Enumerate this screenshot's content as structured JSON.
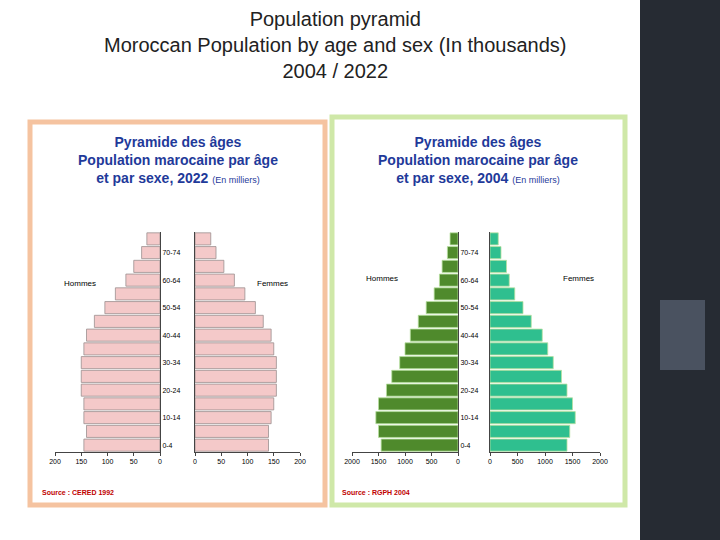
{
  "title": "Population pyramid\nMoroccan Population by age and sex (In thousands)\n2004 / 2022",
  "chart_data": [
    {
      "type": "bar",
      "orientation": "horizontal",
      "title": "Pyramide des âges\nPopulation marocaine par âge\net par sexe, 2022",
      "subtitle": "(En milliers)",
      "annotations": [
        "Source : CERED 1992"
      ],
      "categories": [
        "0-4",
        null,
        "10-14",
        null,
        "20-24",
        null,
        "30-34",
        null,
        "40-44",
        null,
        "50-54",
        null,
        "60-64",
        null,
        "70-74",
        null
      ],
      "series": [
        {
          "name": "Hommes",
          "color": "#f4c9c9",
          "values": [
            145,
            140,
            145,
            145,
            150,
            150,
            150,
            145,
            140,
            125,
            105,
            85,
            65,
            50,
            35,
            25
          ]
        },
        {
          "name": "Femmes",
          "color": "#f4c9c9",
          "values": [
            140,
            140,
            145,
            150,
            155,
            155,
            155,
            150,
            145,
            130,
            115,
            95,
            75,
            55,
            40,
            30
          ]
        }
      ],
      "xlim": [
        0,
        200
      ],
      "xticks": [
        0,
        50,
        100,
        150,
        200
      ],
      "grid": false
    },
    {
      "type": "bar",
      "orientation": "horizontal",
      "title": "Pyramide des âges\nPopulation marocaine par âge\net par sexe, 2004",
      "subtitle": "(En milliers)",
      "annotations": [
        "Source : RGPH 2004"
      ],
      "categories": [
        "0-4",
        null,
        "10-14",
        null,
        "20-24",
        null,
        "30-34",
        null,
        "40-44",
        null,
        "50-54",
        null,
        "60-64",
        null,
        "70-74",
        null
      ],
      "series": [
        {
          "name": "Hommes",
          "color": "#4f8a2c",
          "values": [
            1450,
            1500,
            1550,
            1500,
            1350,
            1250,
            1100,
            1000,
            900,
            750,
            600,
            450,
            350,
            300,
            200,
            150
          ]
        },
        {
          "name": "Femmes",
          "color": "#2fbf8f",
          "values": [
            1400,
            1450,
            1550,
            1500,
            1400,
            1300,
            1150,
            1050,
            950,
            750,
            600,
            450,
            350,
            300,
            200,
            150
          ]
        }
      ],
      "xlim": [
        0,
        2000
      ],
      "xticks": [
        0,
        500,
        1000,
        1500,
        2000
      ],
      "grid": false
    }
  ]
}
